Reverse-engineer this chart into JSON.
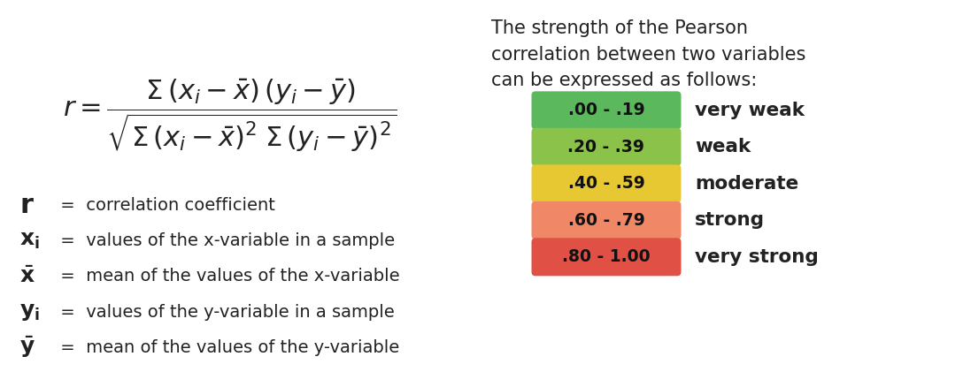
{
  "background_color": "#ffffff",
  "description": "The strength of the Pearson\ncorrelation between two variables\ncan be expressed as follows:",
  "strength_scale": [
    {
      "range": ".00 - .19",
      "label": "very weak",
      "color": "#5cb85c"
    },
    {
      "range": ".20 - .39",
      "label": "weak",
      "color": "#8bc34a"
    },
    {
      "range": ".40 - .59",
      "label": "moderate",
      "color": "#e8c832"
    },
    {
      "range": ".60 - .79",
      "label": "strong",
      "color": "#f08868"
    },
    {
      "range": ".80 - 1.00",
      "label": "very strong",
      "color": "#e05045"
    }
  ],
  "text_color": "#222222",
  "font_family": "DejaVu Sans",
  "fig_width": 10.88,
  "fig_height": 4.38,
  "dpi": 100
}
